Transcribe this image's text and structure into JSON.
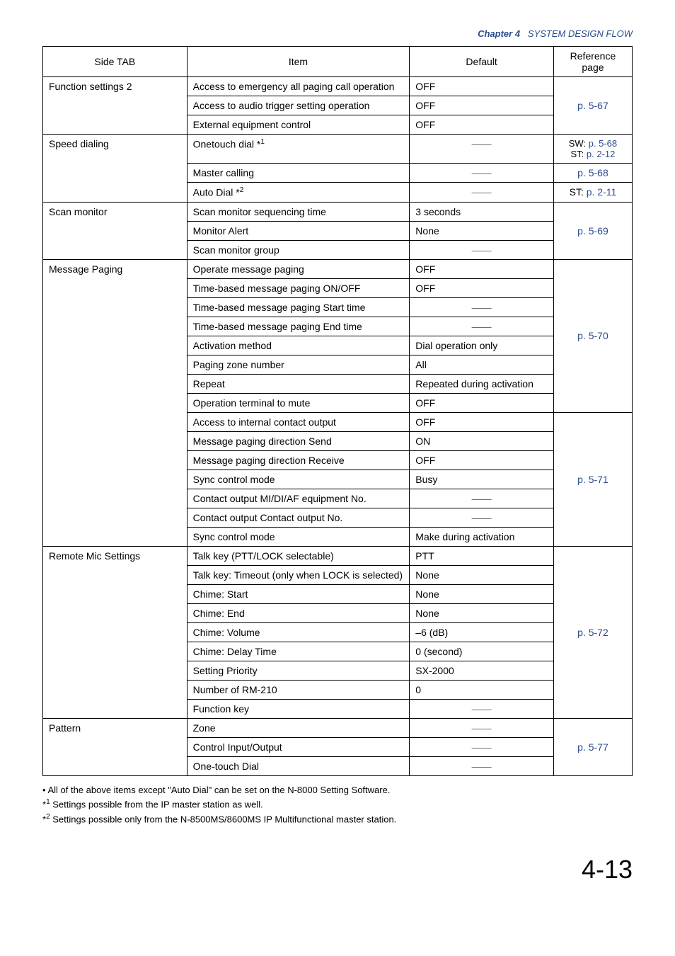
{
  "header": {
    "chapter_label": "Chapter 4",
    "chapter_title": "SYSTEM DESIGN FLOW"
  },
  "table": {
    "headers": {
      "side_tab": "Side TAB",
      "item": "Item",
      "default": "Default",
      "reference": "Reference page"
    },
    "dash": "——",
    "groups": [
      {
        "side_tab": "Function settings 2",
        "rows": [
          {
            "item": "Access to emergency all paging call operation",
            "default": "OFF"
          },
          {
            "item": "Access to audio trigger setting operation",
            "default": "OFF"
          },
          {
            "item": "External equipment control",
            "default": "OFF"
          }
        ],
        "ref": "p. 5-67"
      },
      {
        "side_tab": "Speed dialing",
        "rows": [
          {
            "item": "Onetouch dial *",
            "sup": "1",
            "default": "——",
            "ref_html": "SW: <span class='ref-link'>p. 5-68</span><br>ST:  <span class='ref-link'>p. 2-12</span>"
          },
          {
            "item": "Master calling",
            "default": "——",
            "ref": "p. 5-68"
          },
          {
            "item": "Auto Dial *",
            "sup": "2",
            "default": "——",
            "ref_prefix": "ST: ",
            "ref": "p. 2-11"
          }
        ]
      },
      {
        "side_tab": "Scan monitor",
        "rows": [
          {
            "item": "Scan monitor sequencing time",
            "default": "3 seconds"
          },
          {
            "item": "Monitor Alert",
            "default": "None"
          },
          {
            "item": "Scan monitor group",
            "default": "——"
          }
        ],
        "ref": "p. 5-69"
      },
      {
        "side_tab": "Message Paging",
        "subgroups": [
          {
            "rows": [
              {
                "item": "Operate message paging",
                "default": "OFF"
              },
              {
                "item": "Time-based message paging ON/OFF",
                "default": "OFF"
              },
              {
                "item": "Time-based message paging Start time",
                "default": "——"
              },
              {
                "item": "Time-based message paging End time",
                "default": "——"
              },
              {
                "item": "Activation method",
                "default": "Dial operation only"
              },
              {
                "item": "Paging zone number",
                "default": "All"
              },
              {
                "item": "Repeat",
                "default": "Repeated during activation"
              },
              {
                "item": "Operation terminal to mute",
                "default": "OFF"
              }
            ],
            "ref": "p. 5-70"
          },
          {
            "rows": [
              {
                "item": "Access to internal contact output",
                "default": "OFF"
              },
              {
                "item": "Message paging direction Send",
                "default": "ON"
              },
              {
                "item": "Message paging direction Receive",
                "default": "OFF"
              },
              {
                "item": "Sync control mode",
                "default": "Busy"
              },
              {
                "item": "Contact output   MI/DI/AF equipment No.",
                "default": "——"
              },
              {
                "item": "Contact output   Contact output No.",
                "default": "——"
              },
              {
                "item": "Sync control mode",
                "default": "Make during activation"
              }
            ],
            "ref": "p. 5-71"
          }
        ]
      },
      {
        "side_tab": "Remote Mic Settings",
        "rows": [
          {
            "item": "Talk key (PTT/LOCK selectable)",
            "default": "PTT"
          },
          {
            "item": "Talk key: Timeout (only when LOCK is selected)",
            "default": "None",
            "indent": true
          },
          {
            "item": "Chime: Start",
            "default": "None"
          },
          {
            "item": "Chime: End",
            "default": "None"
          },
          {
            "item": "Chime: Volume",
            "default": "–6 (dB)"
          },
          {
            "item": "Chime: Delay Time",
            "default": "0 (second)"
          },
          {
            "item": "Setting Priority",
            "default": "SX-2000"
          },
          {
            "item": "Number of RM-210",
            "default": "0"
          },
          {
            "item": "Function key",
            "default": "——"
          }
        ],
        "ref": "p. 5-72"
      },
      {
        "side_tab": "Pattern",
        "rows": [
          {
            "item": "Zone",
            "default": "——"
          },
          {
            "item": "Control Input/Output",
            "default": "——"
          },
          {
            "item": "One-touch Dial",
            "default": "——"
          }
        ],
        "ref": "p. 5-77"
      }
    ]
  },
  "footnotes": {
    "line1": "• All of the above items except \"Auto Dial\" can be set on the N-8000 Setting Software.",
    "line2_prefix": "*",
    "line2_sup": "1",
    "line2": " Settings possible from the IP master station as well.",
    "line3_prefix": "*",
    "line3_sup": "2",
    "line3": " Settings possible only from the N-8500MS/8600MS IP Multifunctional master station."
  },
  "page_number": "4-13"
}
